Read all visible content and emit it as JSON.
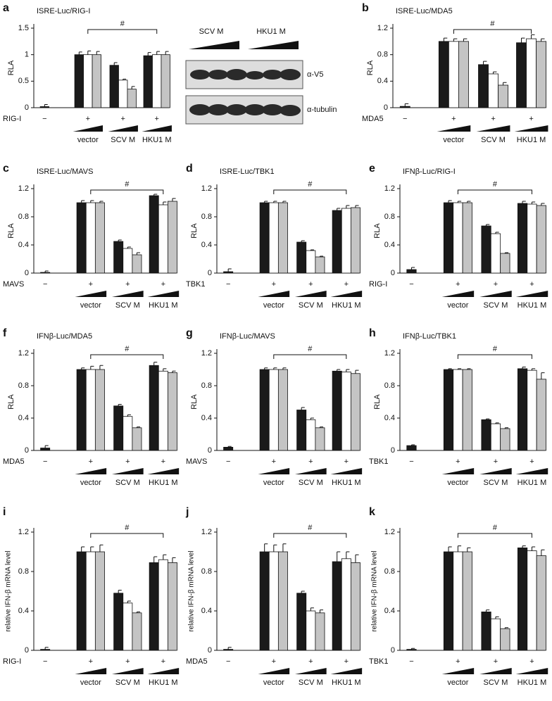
{
  "chart_data": [
    {
      "type": "bar",
      "letter": "a",
      "title": "ISRE-Luc/RIG-I",
      "ylabel": "RLA",
      "stimulus": "RIG-I",
      "signs": [
        "−",
        "+",
        "+",
        "+"
      ],
      "categories": [
        null,
        "vector",
        "SCV M",
        "HKU1 M"
      ],
      "annotation": "#",
      "ylim": [
        0,
        1.5
      ],
      "yticks": [
        0,
        0.5,
        1,
        1.5
      ],
      "series": [
        {
          "color": "#1a1a1a",
          "values": [
            0.02,
            1.0,
            0.8,
            0.98
          ],
          "errors": [
            0.04,
            0.05,
            0.05,
            0.06
          ]
        },
        {
          "color": "#ffffff",
          "values": [
            null,
            1.0,
            0.52,
            1.0
          ],
          "errors": [
            null,
            0.07,
            0.02,
            0.06
          ]
        },
        {
          "color": "#c4c4c4",
          "values": [
            null,
            1.0,
            0.35,
            1.0
          ],
          "errors": [
            null,
            0.06,
            0.05,
            0.06
          ]
        }
      ]
    },
    {
      "type": "bar",
      "letter": "b",
      "title": "ISRE-Luc/MDA5",
      "ylabel": "RLA",
      "stimulus": "MDA5",
      "signs": [
        "−",
        "+",
        "+",
        "+"
      ],
      "categories": [
        null,
        "vector",
        "SCV M",
        "HKU1 M"
      ],
      "annotation": "#",
      "ylim": [
        0,
        1.2
      ],
      "yticks": [
        0,
        0.4,
        0.8,
        1.2
      ],
      "series": [
        {
          "color": "#1a1a1a",
          "values": [
            0.02,
            1.0,
            0.65,
            0.98
          ],
          "errors": [
            0.04,
            0.05,
            0.05,
            0.07
          ]
        },
        {
          "color": "#ffffff",
          "values": [
            null,
            1.0,
            0.51,
            1.04
          ],
          "errors": [
            null,
            0.04,
            0.03,
            0.06
          ]
        },
        {
          "color": "#c4c4c4",
          "values": [
            null,
            1.0,
            0.34,
            1.0
          ],
          "errors": [
            null,
            0.04,
            0.04,
            0.04
          ]
        }
      ]
    },
    {
      "type": "bar",
      "letter": "c",
      "title": "ISRE-Luc/MAVS",
      "ylabel": "RLA",
      "stimulus": "MAVS",
      "signs": [
        "−",
        "+",
        "+",
        "+"
      ],
      "categories": [
        null,
        "vector",
        "SCV M",
        "HKU1 M"
      ],
      "annotation": "#",
      "ylim": [
        0,
        1.2
      ],
      "yticks": [
        0,
        0.4,
        0.8,
        1.2
      ],
      "series": [
        {
          "color": "#1a1a1a",
          "values": [
            0.01,
            1.0,
            0.45,
            1.1
          ],
          "errors": [
            0.02,
            0.03,
            0.02,
            0.02
          ]
        },
        {
          "color": "#ffffff",
          "values": [
            null,
            1.0,
            0.35,
            0.97
          ],
          "errors": [
            null,
            0.03,
            0.02,
            0.04
          ]
        },
        {
          "color": "#c4c4c4",
          "values": [
            null,
            1.0,
            0.26,
            1.02
          ],
          "errors": [
            null,
            0.02,
            0.03,
            0.04
          ]
        }
      ]
    },
    {
      "type": "bar",
      "letter": "d",
      "title": "ISRE-Luc/TBK1",
      "ylabel": "RLA",
      "stimulus": "TBK1",
      "signs": [
        "−",
        "+",
        "+",
        "+"
      ],
      "categories": [
        null,
        "vector",
        "SCV M",
        "HKU1 M"
      ],
      "annotation": "#",
      "ylim": [
        0,
        1.2
      ],
      "yticks": [
        0,
        0.4,
        0.8,
        1.2
      ],
      "series": [
        {
          "color": "#1a1a1a",
          "values": [
            0.02,
            1.0,
            0.44,
            0.89
          ],
          "errors": [
            0.04,
            0.02,
            0.02,
            0.03
          ]
        },
        {
          "color": "#ffffff",
          "values": [
            null,
            1.0,
            0.32,
            0.92
          ],
          "errors": [
            null,
            0.02,
            0.01,
            0.04
          ]
        },
        {
          "color": "#c4c4c4",
          "values": [
            null,
            1.0,
            0.23,
            0.93
          ],
          "errors": [
            null,
            0.02,
            0.01,
            0.03
          ]
        }
      ]
    },
    {
      "type": "bar",
      "letter": "e",
      "title": "IFNβ-Luc/RIG-I",
      "ylabel": "RLA",
      "stimulus": "RIG-I",
      "signs": [
        "−",
        "+",
        "+",
        "+"
      ],
      "categories": [
        null,
        "vector",
        "SCV M",
        "HKU1 M"
      ],
      "annotation": "#",
      "ylim": [
        0,
        1.2
      ],
      "yticks": [
        0,
        0.4,
        0.8,
        1.2
      ],
      "series": [
        {
          "color": "#1a1a1a",
          "values": [
            0.05,
            1.0,
            0.67,
            0.99
          ],
          "errors": [
            0.03,
            0.03,
            0.02,
            0.03
          ]
        },
        {
          "color": "#ffffff",
          "values": [
            null,
            1.0,
            0.56,
            0.98
          ],
          "errors": [
            null,
            0.02,
            0.02,
            0.03
          ]
        },
        {
          "color": "#c4c4c4",
          "values": [
            null,
            1.0,
            0.28,
            0.96
          ],
          "errors": [
            null,
            0.02,
            0.01,
            0.03
          ]
        }
      ]
    },
    {
      "type": "bar",
      "letter": "f",
      "title": "IFNβ-Luc/MDA5",
      "ylabel": "RLA",
      "stimulus": "MDA5",
      "signs": [
        "−",
        "+",
        "+",
        "+"
      ],
      "categories": [
        null,
        "vector",
        "SCV M",
        "HKU1 M"
      ],
      "annotation": "#",
      "ylim": [
        0,
        1.2
      ],
      "yticks": [
        0,
        0.4,
        0.8,
        1.2
      ],
      "series": [
        {
          "color": "#1a1a1a",
          "values": [
            0.03,
            1.0,
            0.55,
            1.05
          ],
          "errors": [
            0.03,
            0.02,
            0.02,
            0.04
          ]
        },
        {
          "color": "#ffffff",
          "values": [
            null,
            1.0,
            0.42,
            0.98
          ],
          "errors": [
            null,
            0.04,
            0.02,
            0.03
          ]
        },
        {
          "color": "#c4c4c4",
          "values": [
            null,
            1.0,
            0.28,
            0.96
          ],
          "errors": [
            null,
            0.05,
            0.01,
            0.02
          ]
        }
      ]
    },
    {
      "type": "bar",
      "letter": "g",
      "title": "IFNβ-Luc/MAVS",
      "ylabel": "RLA",
      "stimulus": "MAVS",
      "signs": [
        "−",
        "+",
        "+",
        "+"
      ],
      "categories": [
        null,
        "vector",
        "SCV M",
        "HKU1 M"
      ],
      "annotation": "#",
      "ylim": [
        0,
        1.2
      ],
      "yticks": [
        0,
        0.4,
        0.8,
        1.2
      ],
      "series": [
        {
          "color": "#1a1a1a",
          "values": [
            0.04,
            1.0,
            0.5,
            0.98
          ],
          "errors": [
            0.01,
            0.02,
            0.03,
            0.02
          ]
        },
        {
          "color": "#ffffff",
          "values": [
            null,
            1.0,
            0.38,
            0.97
          ],
          "errors": [
            null,
            0.02,
            0.02,
            0.03
          ]
        },
        {
          "color": "#c4c4c4",
          "values": [
            null,
            1.0,
            0.28,
            0.95
          ],
          "errors": [
            null,
            0.02,
            0.01,
            0.04
          ]
        }
      ]
    },
    {
      "type": "bar",
      "letter": "h",
      "title": "IFNβ-Luc/TBK1",
      "ylabel": "RLA",
      "stimulus": "TBK1",
      "signs": [
        "−",
        "+",
        "+",
        "+"
      ],
      "categories": [
        null,
        "vector",
        "SCV M",
        "HKU1 M"
      ],
      "annotation": "#",
      "ylim": [
        0,
        1.2
      ],
      "yticks": [
        0,
        0.4,
        0.8,
        1.2
      ],
      "series": [
        {
          "color": "#1a1a1a",
          "values": [
            0.06,
            1.0,
            0.38,
            1.01
          ],
          "errors": [
            0.01,
            0.01,
            0.01,
            0.02
          ]
        },
        {
          "color": "#ffffff",
          "values": [
            null,
            1.0,
            0.33,
            0.99
          ],
          "errors": [
            null,
            0.01,
            0.01,
            0.02
          ]
        },
        {
          "color": "#c4c4c4",
          "values": [
            null,
            1.0,
            0.27,
            0.88
          ],
          "errors": [
            null,
            0.01,
            0.01,
            0.08
          ]
        }
      ]
    },
    {
      "type": "bar",
      "letter": "i",
      "title": null,
      "ylabel": "relative IFN-β mRNA level",
      "stimulus": "RIG-I",
      "signs": [
        "−",
        "+",
        "+",
        "+"
      ],
      "categories": [
        null,
        "vector",
        "SCV M",
        "HKU1 M"
      ],
      "annotation": "#",
      "ylim": [
        0,
        1.2
      ],
      "yticks": [
        0,
        0.4,
        0.8,
        1.2
      ],
      "series": [
        {
          "color": "#1a1a1a",
          "values": [
            0.01,
            1.0,
            0.58,
            0.89
          ],
          "errors": [
            0.02,
            0.05,
            0.03,
            0.06
          ]
        },
        {
          "color": "#ffffff",
          "values": [
            null,
            1.0,
            0.48,
            0.92
          ],
          "errors": [
            null,
            0.05,
            0.02,
            0.05
          ]
        },
        {
          "color": "#c4c4c4",
          "values": [
            null,
            1.0,
            0.38,
            0.89
          ],
          "errors": [
            null,
            0.07,
            0.01,
            0.05
          ]
        }
      ]
    },
    {
      "type": "bar",
      "letter": "j",
      "title": null,
      "ylabel": "relative IFN-β mRNA level",
      "stimulus": "MDA5",
      "signs": [
        "−",
        "+",
        "+",
        "+"
      ],
      "categories": [
        null,
        "vector",
        "SCV M",
        "HKU1 M"
      ],
      "annotation": "#",
      "ylim": [
        0,
        1.2
      ],
      "yticks": [
        0,
        0.4,
        0.8,
        1.2
      ],
      "series": [
        {
          "color": "#1a1a1a",
          "values": [
            0.01,
            1.0,
            0.58,
            0.9
          ],
          "errors": [
            0.02,
            0.08,
            0.02,
            0.1
          ]
        },
        {
          "color": "#ffffff",
          "values": [
            null,
            1.0,
            0.4,
            0.93
          ],
          "errors": [
            null,
            0.07,
            0.03,
            0.07
          ]
        },
        {
          "color": "#c4c4c4",
          "values": [
            null,
            1.0,
            0.38,
            0.89
          ],
          "errors": [
            null,
            0.08,
            0.03,
            0.08
          ]
        }
      ]
    },
    {
      "type": "bar",
      "letter": "k",
      "title": null,
      "ylabel": "relative IFN-β mRNA level",
      "stimulus": "TBK1",
      "signs": [
        "−",
        "+",
        "+",
        "+"
      ],
      "categories": [
        null,
        "vector",
        "SCV M",
        "HKU1 M"
      ],
      "annotation": "#",
      "ylim": [
        0,
        1.2
      ],
      "yticks": [
        0,
        0.4,
        0.8,
        1.2
      ],
      "series": [
        {
          "color": "#1a1a1a",
          "values": [
            0.01,
            1.0,
            0.39,
            1.04
          ],
          "errors": [
            0.01,
            0.05,
            0.02,
            0.02
          ]
        },
        {
          "color": "#ffffff",
          "values": [
            null,
            1.0,
            0.32,
            1.01
          ],
          "errors": [
            null,
            0.06,
            0.02,
            0.04
          ]
        },
        {
          "color": "#c4c4c4",
          "values": [
            null,
            1.0,
            0.22,
            0.96
          ],
          "errors": [
            null,
            0.04,
            0.01,
            0.06
          ]
        }
      ]
    }
  ],
  "blot": {
    "groups": [
      "SCV M",
      "HKU1 M"
    ],
    "bands": [
      "α-V5",
      "α-tubulin"
    ]
  }
}
